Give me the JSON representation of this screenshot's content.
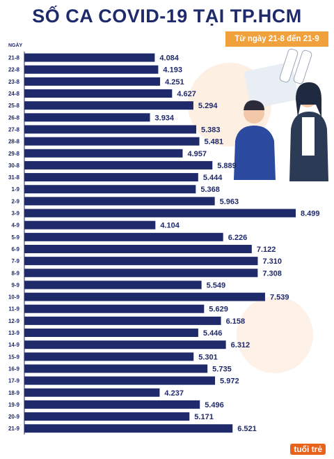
{
  "title": "SỐ CA COVID-19 TẠI TP.HCM",
  "subtitle": "Từ ngày 21-8 đến 21-9",
  "logo_text": "tuổi trẻ",
  "colors": {
    "bar": "#1f2a6b",
    "accent": "#f0a13c",
    "text": "#1f2a6b"
  },
  "chart_data": {
    "type": "bar",
    "orientation": "horizontal",
    "title": "SỐ CA COVID-19 TẠI TP.HCM",
    "subtitle": "Từ ngày 21-8 đến 21-9",
    "ylabel": "NGÀY",
    "xlabel": "",
    "categories": [
      "21-8",
      "22-8",
      "23-8",
      "24-8",
      "25-8",
      "26-8",
      "27-8",
      "28-8",
      "29-8",
      "30-8",
      "31-8",
      "1-9",
      "2-9",
      "3-9",
      "4-9",
      "5-9",
      "6-9",
      "7-9",
      "8-9",
      "9-9",
      "10-9",
      "11-9",
      "12-9",
      "13-9",
      "14-9",
      "15-9",
      "16-9",
      "17-9",
      "18-9",
      "19-9",
      "20-9",
      "21-9"
    ],
    "values": [
      4084,
      4193,
      4251,
      4627,
      5294,
      3934,
      5383,
      5481,
      4957,
      5889,
      5444,
      5368,
      5963,
      8499,
      4104,
      6226,
      7122,
      7310,
      7308,
      5549,
      7539,
      5629,
      6158,
      5446,
      6312,
      5301,
      5735,
      5972,
      4237,
      5496,
      5171,
      6521
    ],
    "value_labels": [
      "4.084",
      "4.193",
      "4.251",
      "4.627",
      "5.294",
      "3.934",
      "5.383",
      "5.481",
      "4.957",
      "5.889",
      "5.444",
      "5.368",
      "5.963",
      "8.499",
      "4.104",
      "6.226",
      "7.122",
      "7.310",
      "7.308",
      "5.549",
      "7.539",
      "5.629",
      "6.158",
      "5.446",
      "6.312",
      "5.301",
      "5.735",
      "5.972",
      "4.237",
      "5.496",
      "5.171",
      "6.521"
    ],
    "xlim": [
      0,
      8499
    ],
    "grid": false,
    "legend": "none"
  }
}
